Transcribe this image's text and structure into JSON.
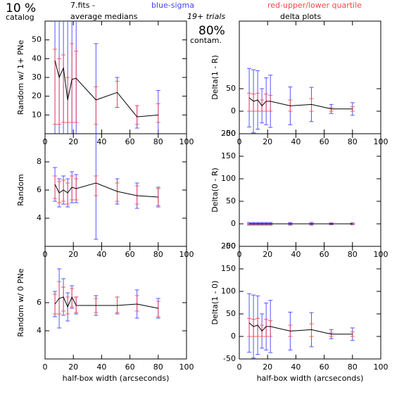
{
  "header": {
    "percent": "10 %",
    "catalog": "catalog",
    "file": "7.fits  -",
    "medians": "average medians",
    "blue": "blue-sigma",
    "red": "red-upper/lower quartile",
    "trials": "19+ trials",
    "contam_pct": "80%",
    "contam": "contam.",
    "delta": "delta plots"
  },
  "chart_data": [
    {
      "type": "line",
      "ylabel": "Random w/ 1+ PNe",
      "x": [
        7,
        10,
        13,
        16,
        19,
        22,
        36,
        51,
        65,
        80
      ],
      "values": [
        39,
        30,
        35,
        18,
        29,
        29.5,
        18,
        22,
        9,
        10
      ],
      "sigma": [
        40,
        45,
        40,
        50,
        45,
        45,
        30,
        8,
        6,
        13
      ],
      "q_low": [
        5,
        5,
        6,
        6,
        6,
        6,
        5,
        14,
        5,
        6
      ],
      "q_high": [
        45,
        40,
        42,
        30,
        48,
        44,
        25,
        28,
        15,
        16
      ],
      "color": "#000000",
      "sigma_color": "#5555ff",
      "quartile_color": "#ff4444",
      "xlim": [
        0,
        100
      ],
      "xticks": [
        0,
        20,
        40,
        60,
        80,
        100
      ],
      "ylim": [
        0,
        60
      ],
      "yticks": [
        10,
        20,
        30,
        40,
        50
      ]
    },
    {
      "type": "line",
      "ylabel": "Delta(1 - R)",
      "x": [
        7,
        10,
        13,
        16,
        19,
        22,
        36,
        51,
        65,
        80
      ],
      "values": [
        30,
        22,
        25,
        12,
        22,
        22,
        12,
        15,
        5,
        5
      ],
      "sigma": [
        65,
        70,
        65,
        38,
        52,
        58,
        42,
        38,
        10,
        14
      ],
      "q_low": [
        0,
        0,
        0,
        0,
        0,
        0,
        0,
        0,
        0,
        0
      ],
      "q_high": [
        40,
        38,
        40,
        25,
        38,
        35,
        25,
        28,
        8,
        10
      ],
      "color": "#000000",
      "sigma_color": "#5555ff",
      "quartile_color": "#ff4444",
      "xlim": [
        0,
        100
      ],
      "xticks": [
        0,
        20,
        40,
        60,
        80,
        100
      ],
      "ylim": [
        -50,
        200
      ],
      "yticks": [
        -50,
        0,
        50
      ]
    },
    {
      "type": "line",
      "ylabel": "Random",
      "x": [
        7,
        10,
        13,
        16,
        19,
        22,
        36,
        51,
        65,
        80
      ],
      "values": [
        6.4,
        5.8,
        6.0,
        5.8,
        6.2,
        6.1,
        6.5,
        5.9,
        5.6,
        5.5
      ],
      "sigma": [
        1.2,
        1.0,
        1.0,
        1.0,
        1.1,
        1.0,
        4.0,
        0.9,
        0.9,
        0.7
      ],
      "q_low": [
        5.4,
        5.1,
        5.2,
        5.0,
        5.3,
        5.3,
        5.6,
        5.2,
        5.0,
        4.9
      ],
      "q_high": [
        7.0,
        6.6,
        6.7,
        6.5,
        7.0,
        6.8,
        7.0,
        6.5,
        6.3,
        6.1
      ],
      "color": "#000000",
      "sigma_color": "#5555ff",
      "quartile_color": "#ff4444",
      "xlim": [
        0,
        100
      ],
      "xticks": [
        0,
        20,
        40,
        60,
        80,
        100
      ],
      "ylim": [
        2,
        10
      ],
      "yticks": [
        4,
        6,
        8
      ]
    },
    {
      "type": "line",
      "ylabel": "Delta(0 - R)",
      "x": [
        7,
        10,
        13,
        16,
        19,
        22,
        36,
        51,
        65,
        80
      ],
      "values": [
        0,
        0,
        0,
        0,
        0,
        0,
        0,
        0,
        0,
        0
      ],
      "sigma": [
        3,
        3,
        3,
        3,
        3,
        3,
        3,
        3,
        2,
        2
      ],
      "q_low": [
        -1,
        -1,
        -1,
        -1,
        -1,
        -1,
        -1,
        -1,
        -1,
        -1
      ],
      "q_high": [
        1,
        1,
        1,
        1,
        1,
        1,
        1,
        1,
        1,
        1
      ],
      "color": "#000000",
      "sigma_color": "#5555ff",
      "quartile_color": "#ff4444",
      "xlim": [
        0,
        100
      ],
      "xticks": [
        0,
        20,
        40,
        60,
        80,
        100
      ],
      "ylim": [
        -50,
        200
      ],
      "yticks": [
        -50,
        0,
        50,
        100,
        150,
        200
      ]
    },
    {
      "type": "line",
      "ylabel": "Random w/ 0 PNe",
      "xlabel": "half-box width (arcseconds)",
      "x": [
        7,
        10,
        13,
        16,
        19,
        22,
        36,
        51,
        65,
        80
      ],
      "values": [
        5.9,
        6.3,
        6.4,
        5.7,
        6.4,
        5.8,
        5.8,
        5.8,
        5.9,
        5.6
      ],
      "sigma": [
        0.9,
        2.1,
        1.3,
        1.0,
        0.8,
        0.6,
        0.7,
        0.6,
        1.0,
        0.7
      ],
      "q_low": [
        5.2,
        5.2,
        5.4,
        5.2,
        5.7,
        5.3,
        5.3,
        5.3,
        5.4,
        5.0
      ],
      "q_high": [
        6.6,
        7.5,
        7.1,
        6.4,
        7.0,
        6.4,
        6.3,
        6.4,
        6.5,
        6.1
      ],
      "color": "#000000",
      "sigma_color": "#5555ff",
      "quartile_color": "#ff4444",
      "xlim": [
        0,
        100
      ],
      "xticks": [
        0,
        20,
        40,
        60,
        80,
        100
      ],
      "ylim": [
        2,
        10
      ],
      "yticks": [
        4,
        6
      ]
    },
    {
      "type": "line",
      "ylabel": "Delta(1 - 0)",
      "xlabel": "half-box width (arcseconds)",
      "x": [
        7,
        10,
        13,
        16,
        19,
        22,
        36,
        51,
        65,
        80
      ],
      "values": [
        30,
        22,
        25,
        12,
        22,
        22,
        12,
        15,
        5,
        5
      ],
      "sigma": [
        65,
        70,
        65,
        38,
        52,
        58,
        42,
        38,
        10,
        14
      ],
      "q_low": [
        0,
        0,
        0,
        0,
        0,
        0,
        0,
        0,
        0,
        0
      ],
      "q_high": [
        40,
        38,
        40,
        25,
        38,
        35,
        25,
        28,
        8,
        10
      ],
      "color": "#000000",
      "sigma_color": "#5555ff",
      "quartile_color": "#ff4444",
      "xlim": [
        0,
        100
      ],
      "xticks": [
        0,
        20,
        40,
        60,
        80,
        100
      ],
      "ylim": [
        -50,
        200
      ],
      "yticks": [
        -50,
        0,
        50,
        100,
        150,
        200
      ]
    }
  ]
}
